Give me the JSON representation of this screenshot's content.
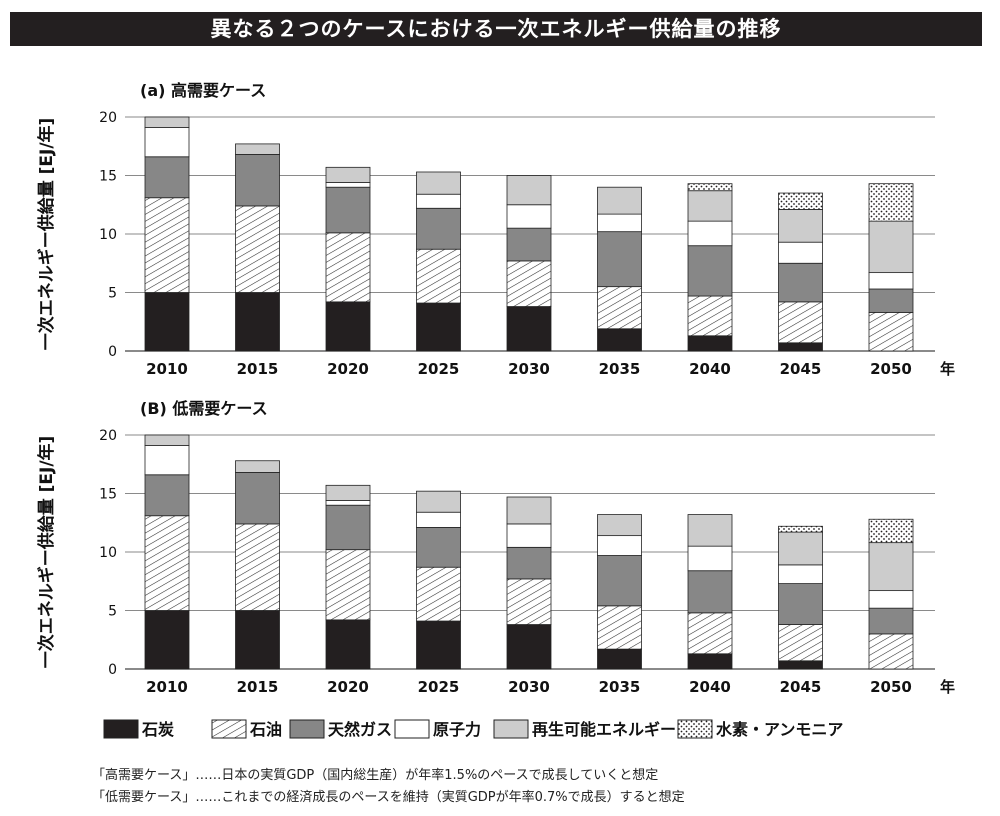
{
  "figure_title": "異なる２つのケースにおける一次エネルギー供給量の推移",
  "colors": {
    "coal": "#231f20",
    "oil_hatch": "#3a3a3a",
    "gas": "#878787",
    "nuclear": "#ffffff",
    "renewable": "#cccccc",
    "hydrogen_dots": "#231f20"
  },
  "chart_data": [
    {
      "type": "bar",
      "stacked": true,
      "title": "(a) 高需要ケース",
      "ylabel": "一次エネルギー供給量 [EJ/年]",
      "xlabel": "年",
      "ylim": [
        0,
        20
      ],
      "yticks": [
        "0",
        "5",
        "10",
        "15",
        "20"
      ],
      "grid": true,
      "categories": [
        "2010",
        "2015",
        "2020",
        "2025",
        "2030",
        "2035",
        "2040",
        "2045",
        "2050"
      ],
      "series": [
        {
          "name": "石炭",
          "values": [
            5.0,
            5.0,
            4.2,
            4.1,
            3.8,
            1.9,
            1.3,
            0.7,
            0.0
          ]
        },
        {
          "name": "石油",
          "values": [
            8.1,
            7.4,
            5.9,
            4.6,
            3.9,
            3.6,
            3.4,
            3.5,
            3.3
          ]
        },
        {
          "name": "天然ガス",
          "values": [
            3.5,
            4.4,
            3.9,
            3.5,
            2.8,
            4.7,
            4.3,
            3.3,
            2.0
          ]
        },
        {
          "name": "原子力",
          "values": [
            2.5,
            0.0,
            0.4,
            1.2,
            2.0,
            1.5,
            2.1,
            1.8,
            1.4
          ]
        },
        {
          "name": "再生可能エネルギー",
          "values": [
            0.9,
            0.9,
            1.3,
            1.9,
            2.5,
            2.3,
            2.6,
            2.8,
            4.4
          ]
        },
        {
          "name": "水素・アンモニア",
          "values": [
            0.0,
            0.0,
            0.0,
            0.0,
            0.0,
            0.0,
            0.6,
            1.4,
            3.2
          ]
        }
      ]
    },
    {
      "type": "bar",
      "stacked": true,
      "title": "(B) 低需要ケース",
      "ylabel": "一次エネルギー供給量 [EJ/年]",
      "xlabel": "年",
      "ylim": [
        0,
        20
      ],
      "yticks": [
        "0",
        "5",
        "10",
        "15",
        "20"
      ],
      "grid": true,
      "categories": [
        "2010",
        "2015",
        "2020",
        "2025",
        "2030",
        "2035",
        "2040",
        "2045",
        "2050"
      ],
      "series": [
        {
          "name": "石炭",
          "values": [
            5.0,
            5.0,
            4.2,
            4.1,
            3.8,
            1.7,
            1.3,
            0.7,
            0.0
          ]
        },
        {
          "name": "石油",
          "values": [
            8.1,
            7.4,
            6.0,
            4.6,
            3.9,
            3.7,
            3.5,
            3.1,
            3.0
          ]
        },
        {
          "name": "天然ガス",
          "values": [
            3.5,
            4.4,
            3.8,
            3.4,
            2.7,
            4.3,
            3.6,
            3.5,
            2.2
          ]
        },
        {
          "name": "原子力",
          "values": [
            2.5,
            0.0,
            0.4,
            1.3,
            2.0,
            1.7,
            2.1,
            1.6,
            1.5
          ]
        },
        {
          "name": "再生可能エネルギー",
          "values": [
            0.9,
            1.0,
            1.3,
            1.8,
            2.3,
            1.8,
            2.7,
            2.8,
            4.1
          ]
        },
        {
          "name": "水素・アンモニア",
          "values": [
            0.0,
            0.0,
            0.0,
            0.0,
            0.0,
            0.0,
            0.0,
            0.5,
            2.0
          ]
        }
      ]
    }
  ],
  "legend": [
    {
      "key": "coal",
      "label": "石炭"
    },
    {
      "key": "oil",
      "label": "石油"
    },
    {
      "key": "gas",
      "label": "天然ガス"
    },
    {
      "key": "nuclear",
      "label": "原子力"
    },
    {
      "key": "renewable",
      "label": "再生可能エネルギー"
    },
    {
      "key": "hydrogen",
      "label": "水素・アンモニア"
    }
  ],
  "notes": [
    "「高需要ケース」……日本の実質GDP（国内総生産）が年率1.5%のペースで成長していくと想定",
    "「低需要ケース」……これまでの経済成長のペースを維持（実質GDPが年率0.7%で成長）すると想定"
  ]
}
